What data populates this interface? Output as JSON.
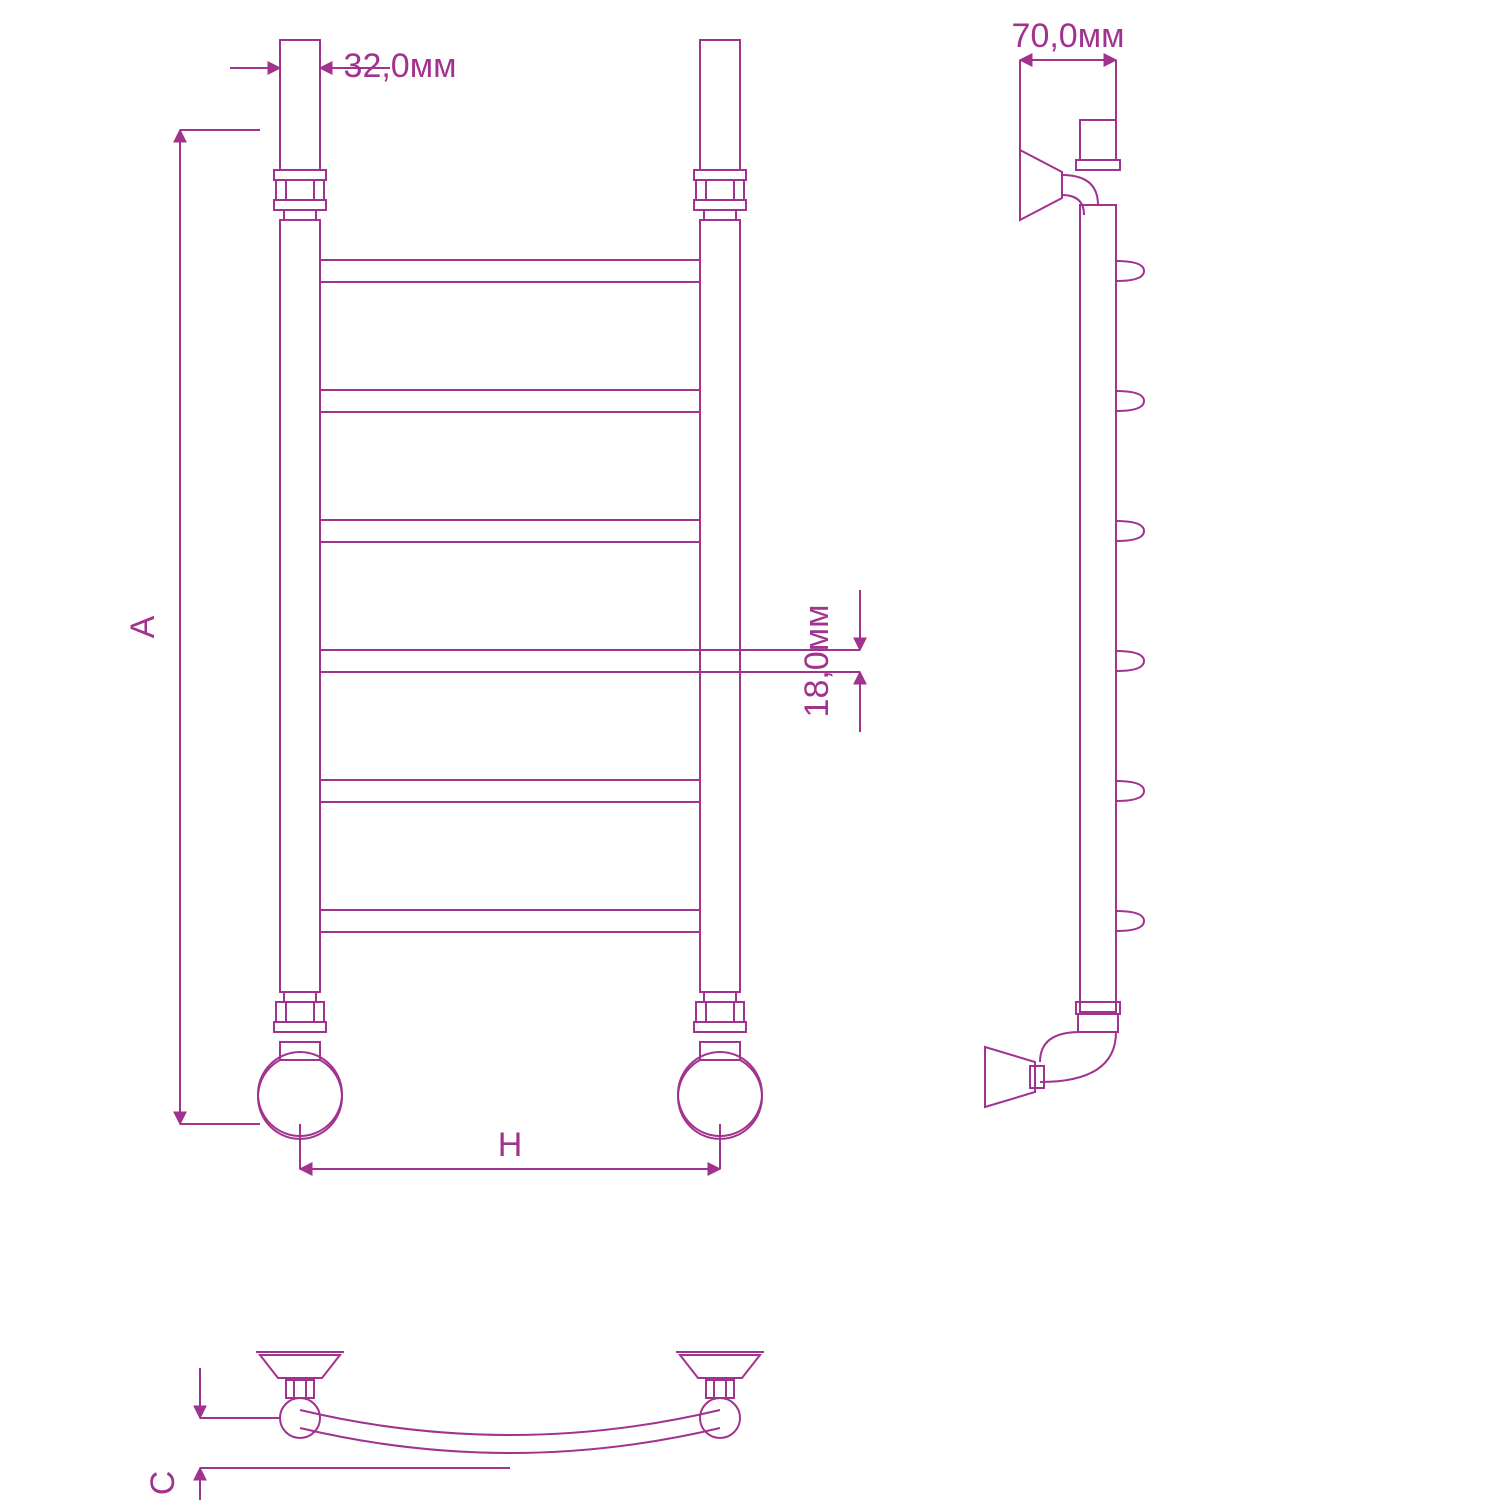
{
  "diagram": {
    "type": "engineering-dimension-drawing",
    "stroke_color": "#a1338e",
    "stroke_width": 2,
    "background_color": "#ffffff",
    "label_fontsize": 34,
    "arrow_size": 14,
    "pipe_diameter_label": "32,0мм",
    "depth_label": "70,0мм",
    "rung_diameter_label": "18,0мм",
    "height_letter": "A",
    "width_letter": "H",
    "curve_letter": "C",
    "rung_count": 6
  }
}
